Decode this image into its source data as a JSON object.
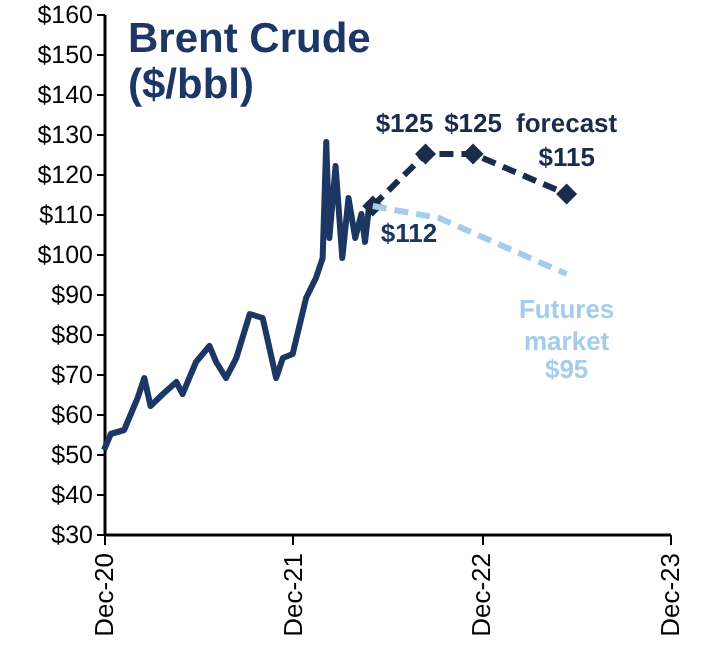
{
  "chart_data": {
    "type": "line",
    "title": "Brent Crude",
    "subtitle": "($/bbl)",
    "xlim": [
      "2020-12-01",
      "2023-12-01"
    ],
    "xticks": [
      {
        "value": "2020-12-01",
        "label": "Dec-20"
      },
      {
        "value": "2021-12-01",
        "label": "Dec-21"
      },
      {
        "value": "2022-12-01",
        "label": "Dec-22"
      },
      {
        "value": "2023-12-01",
        "label": "Dec-23"
      }
    ],
    "ylim": [
      30,
      160
    ],
    "yticks": [
      {
        "value": 30,
        "label": "$30"
      },
      {
        "value": 40,
        "label": "$40"
      },
      {
        "value": 50,
        "label": "$50"
      },
      {
        "value": 60,
        "label": "$60"
      },
      {
        "value": 70,
        "label": "$70"
      },
      {
        "value": 80,
        "label": "$80"
      },
      {
        "value": 90,
        "label": "$90"
      },
      {
        "value": 100,
        "label": "$100"
      },
      {
        "value": 110,
        "label": "$110"
      },
      {
        "value": 120,
        "label": "$120"
      },
      {
        "value": 130,
        "label": "$130"
      },
      {
        "value": 140,
        "label": "$140"
      },
      {
        "value": 150,
        "label": "$150"
      },
      {
        "value": 160,
        "label": "$160"
      }
    ],
    "series": [
      {
        "color": "#1c3764",
        "line_style": "solid",
        "marker": "none",
        "x": [
          "2020-12-01",
          "2020-12-14",
          "2021-01-09",
          "2021-02-04",
          "2021-02-17",
          "2021-03-01",
          "2021-03-25",
          "2021-04-20",
          "2021-05-02",
          "2021-05-28",
          "2021-06-23",
          "2021-07-06",
          "2021-07-25",
          "2021-08-14",
          "2021-09-09",
          "2021-10-04",
          "2021-10-30",
          "2021-11-12",
          "2021-12-01",
          "2021-12-27",
          "2022-01-15",
          "2022-01-28",
          "2022-02-04",
          "2022-02-10",
          "2022-02-22",
          "2022-03-07",
          "2022-03-19",
          "2022-04-01",
          "2022-04-13",
          "2022-04-20",
          "2022-04-27",
          "2022-05-05"
        ],
        "values": [
          51,
          55,
          56,
          64,
          69,
          62,
          65,
          68,
          65,
          73,
          77,
          73,
          69,
          74,
          85,
          84,
          69,
          74,
          75,
          89,
          94,
          99,
          128,
          104,
          122,
          99,
          114,
          104,
          110,
          103,
          111,
          112
        ],
        "value_labels": [
          null,
          null,
          null,
          null,
          null,
          null,
          null,
          null,
          null,
          null,
          null,
          null,
          null,
          null,
          null,
          null,
          null,
          null,
          null,
          null,
          null,
          null,
          null,
          null,
          null,
          null,
          null,
          null,
          null,
          null,
          null,
          "$112"
        ]
      },
      {
        "name": "forecast",
        "color": "#1a2b4c",
        "line_style": "dashed",
        "marker": "diamond",
        "x": [
          "2022-05-05",
          "2022-08-15",
          "2022-11-15",
          "2023-05-15"
        ],
        "values": [
          112,
          125,
          125,
          115
        ],
        "value_labels": [
          null,
          "$125",
          "$125",
          "$115"
        ]
      },
      {
        "name": "Futures market",
        "color": "#a3cdea",
        "line_style": "dashed",
        "marker": "none",
        "x": [
          "2022-05-05",
          "2022-09-10",
          "2023-05-15"
        ],
        "values": [
          112,
          109,
          95
        ],
        "value_labels": [
          null,
          null,
          "$95"
        ]
      }
    ]
  }
}
